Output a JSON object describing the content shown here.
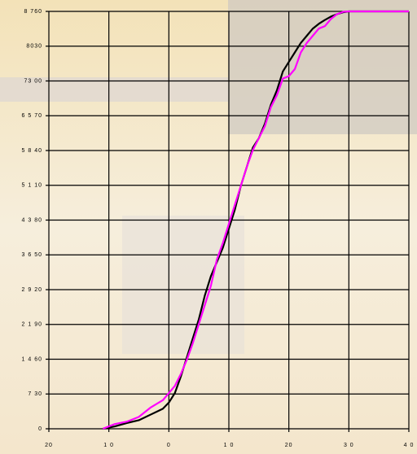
{
  "chart_data": {
    "type": "line",
    "x": [
      -11,
      -9,
      -7,
      -5,
      -3,
      -1,
      0,
      1,
      2,
      3,
      4,
      5,
      6,
      7,
      8,
      9,
      10,
      11,
      12,
      13,
      14,
      15,
      16,
      17,
      18,
      19,
      20,
      21,
      22,
      23,
      24,
      25,
      26,
      27,
      28,
      29,
      30,
      40
    ],
    "series": [
      {
        "color": "#000000",
        "values": [
          0,
          50,
          120,
          180,
          300,
          420,
          550,
          750,
          1100,
          1500,
          1900,
          2300,
          2800,
          3200,
          3500,
          3800,
          4200,
          4600,
          5100,
          5500,
          5900,
          6100,
          6400,
          6800,
          7100,
          7500,
          7700,
          7900,
          8100,
          8250,
          8400,
          8500,
          8580,
          8650,
          8700,
          8740,
          8760,
          8760
        ]
      },
      {
        "color": "#ff00ff",
        "values": [
          0,
          100,
          150,
          250,
          450,
          600,
          750,
          900,
          1150,
          1450,
          1800,
          2200,
          2600,
          3000,
          3550,
          3900,
          4300,
          4700,
          5100,
          5500,
          5850,
          6100,
          6350,
          6750,
          7000,
          7350,
          7400,
          7550,
          7900,
          8100,
          8250,
          8400,
          8450,
          8600,
          8700,
          8750,
          8760,
          8760
        ]
      }
    ],
    "xlim": [
      -20,
      40
    ],
    "ylim": [
      0,
      8760
    ],
    "xticks": [
      {
        "value": -20,
        "label": "20"
      },
      {
        "value": -10,
        "label": "1 0"
      },
      0,
      {
        "value": 10,
        "label": "1 0"
      },
      20,
      {
        "value": 30,
        "label": "3 0"
      },
      {
        "value": 40,
        "label": "4 0"
      }
    ],
    "yticks": [
      0,
      {
        "value": 730,
        "label": "7 30"
      },
      {
        "value": 1460,
        "label": "1 4 60"
      },
      {
        "value": 2190,
        "label": "2 1 90"
      },
      {
        "value": 2920,
        "label": "2 9 20"
      },
      {
        "value": 3650,
        "label": "3 6 50"
      },
      {
        "value": 4380,
        "label": "4 3 80"
      },
      {
        "value": 5110,
        "label": "5 1 10"
      },
      {
        "value": 5840,
        "label": "5 8 40"
      },
      {
        "value": 6570,
        "label": "6 5 70"
      },
      {
        "value": 7300,
        "label": "73 00"
      },
      8030,
      {
        "value": 8760,
        "label": "8 760"
      }
    ],
    "grid": true
  }
}
